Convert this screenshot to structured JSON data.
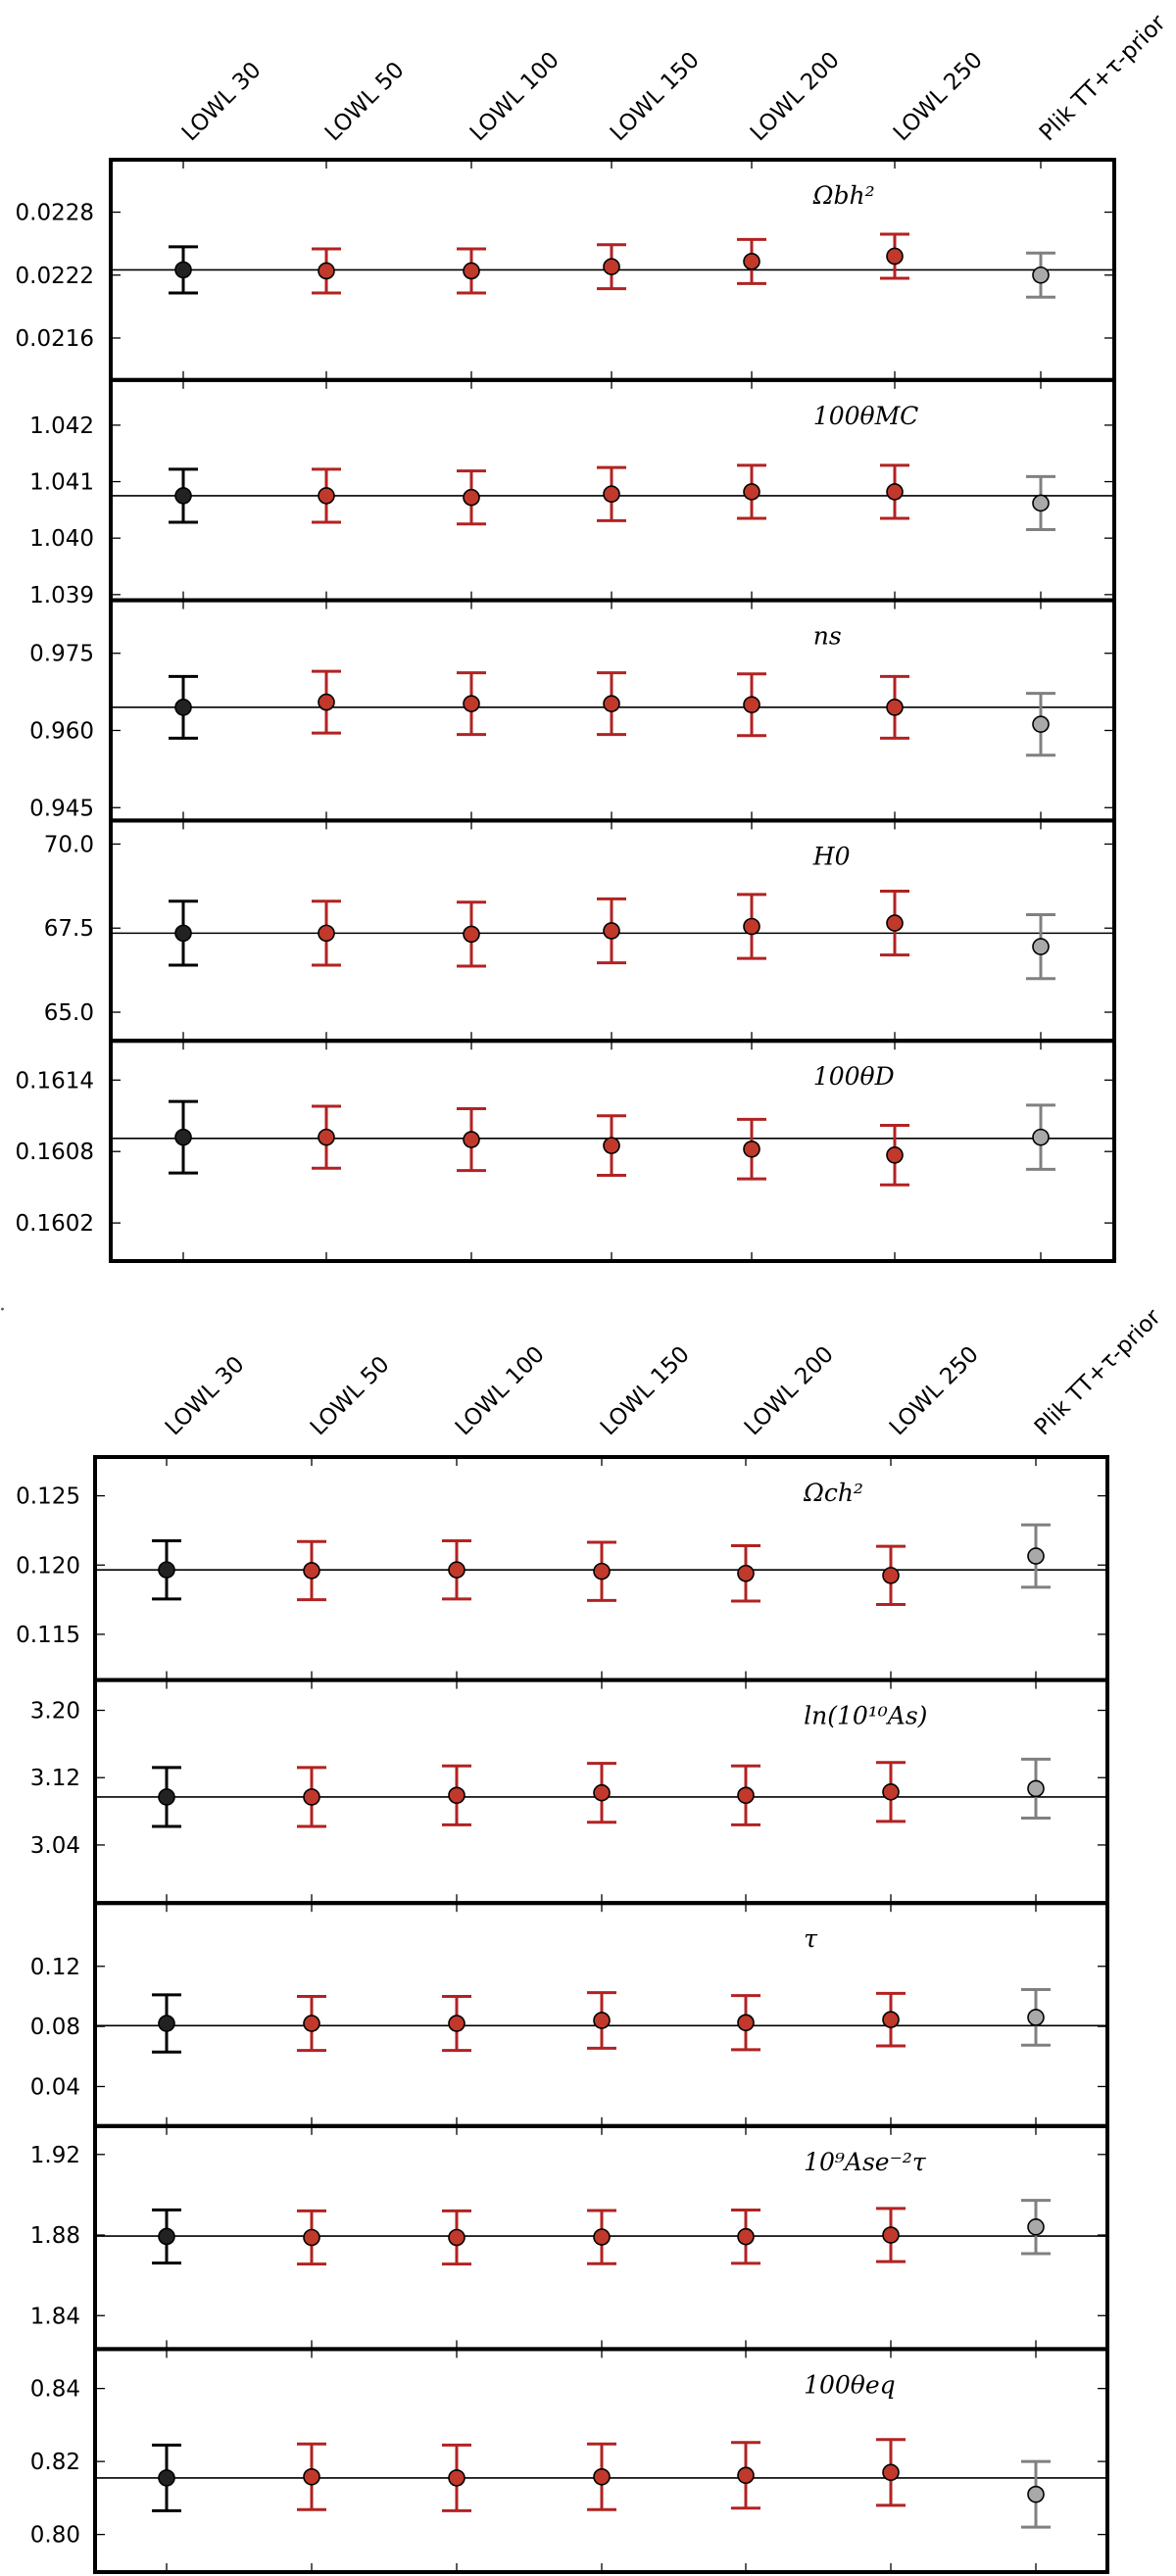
{
  "chart_data": [
    {
      "type": "scatter",
      "categories": [
        "LOWL 30",
        "LOWL 50",
        "LOWL 100",
        "LOWL 150",
        "LOWL 200",
        "LOWL 250",
        "Plik TT+τ-prior"
      ],
      "point_colors": [
        "#000000",
        "#b22222",
        "#b22222",
        "#b22222",
        "#b22222",
        "#b22222",
        "#808080"
      ],
      "fill_colors": [
        "#222222",
        "#c0392b",
        "#c0392b",
        "#c0392b",
        "#c0392b",
        "#c0392b",
        "#a9a9a9"
      ],
      "panels": [
        {
          "label": "Ωbh²",
          "ticks": [
            "0.0228",
            "0.0222",
            "0.0216"
          ],
          "tick_values": [
            0.0228,
            0.0222,
            0.0216
          ],
          "ylim": [
            0.0212,
            0.0233
          ],
          "reference": 0.02225,
          "values": [
            0.02225,
            0.02224,
            0.02224,
            0.02228,
            0.02233,
            0.02238,
            0.0222
          ],
          "errors": [
            0.00022,
            0.00021,
            0.00021,
            0.00021,
            0.00021,
            0.00021,
            0.00021
          ]
        },
        {
          "label": "100θMC",
          "ticks": [
            "1.042",
            "1.041",
            "1.040",
            "1.039"
          ],
          "tick_values": [
            1.042,
            1.041,
            1.04,
            1.039
          ],
          "ylim": [
            1.0389,
            1.0428
          ],
          "reference": 1.04075,
          "values": [
            1.04075,
            1.04075,
            1.04072,
            1.04078,
            1.04082,
            1.04082,
            1.04062
          ],
          "errors": [
            0.00047,
            0.00047,
            0.00047,
            0.00047,
            0.00047,
            0.00047,
            0.00047
          ]
        },
        {
          "label": "ns",
          "ticks": [
            "0.975",
            "0.960",
            "0.945"
          ],
          "tick_values": [
            0.975,
            0.96,
            0.945
          ],
          "ylim": [
            0.9425,
            0.9853
          ],
          "reference": 0.9645,
          "values": [
            0.9645,
            0.9655,
            0.9652,
            0.9652,
            0.965,
            0.9645,
            0.9612
          ],
          "errors": [
            0.006,
            0.006,
            0.006,
            0.006,
            0.006,
            0.006,
            0.006
          ]
        },
        {
          "label": "H0",
          "ticks": [
            "70.0",
            "67.5",
            "65.0"
          ],
          "tick_values": [
            70.0,
            67.5,
            65.0
          ],
          "ylim": [
            64.15,
            70.7
          ],
          "reference": 67.35,
          "values": [
            67.35,
            67.35,
            67.32,
            67.42,
            67.55,
            67.65,
            66.95
          ],
          "errors": [
            0.95,
            0.95,
            0.95,
            0.95,
            0.95,
            0.95,
            0.95
          ]
        },
        {
          "label": "100θD",
          "ticks": [
            "0.1614",
            "0.1608",
            "0.1602"
          ],
          "tick_values": [
            0.1614,
            0.1608,
            0.1602
          ],
          "ylim": [
            0.15988,
            0.16173
          ],
          "reference": 0.16091,
          "values": [
            0.16092,
            0.16092,
            0.1609,
            0.16085,
            0.16082,
            0.16077,
            0.16092
          ],
          "errors": [
            0.0003,
            0.00026,
            0.00026,
            0.00025,
            0.00025,
            0.00025,
            0.00027
          ]
        }
      ]
    },
    {
      "type": "scatter",
      "categories": [
        "LOWL 30",
        "LOWL 50",
        "LOWL 100",
        "LOWL 150",
        "LOWL 200",
        "LOWL 250",
        "Plik TT+τ-prior"
      ],
      "point_colors": [
        "#000000",
        "#b22222",
        "#b22222",
        "#b22222",
        "#b22222",
        "#b22222",
        "#808080"
      ],
      "fill_colors": [
        "#222222",
        "#c0392b",
        "#c0392b",
        "#c0392b",
        "#c0392b",
        "#c0392b",
        "#a9a9a9"
      ],
      "panels": [
        {
          "label": "Ωch²",
          "ticks": [
            "0.125",
            "0.120",
            "0.115"
          ],
          "tick_values": [
            0.125,
            0.12,
            0.115
          ],
          "ylim": [
            0.1117,
            0.1278
          ],
          "reference": 0.11965,
          "values": [
            0.11965,
            0.1196,
            0.11965,
            0.11955,
            0.1194,
            0.11925,
            0.12065
          ],
          "errors": [
            0.0021,
            0.0021,
            0.0021,
            0.0021,
            0.002,
            0.0021,
            0.00225
          ]
        },
        {
          "label": "ln(10¹⁰As)",
          "ticks": [
            "3.20",
            "3.12",
            "3.04"
          ],
          "tick_values": [
            3.2,
            3.12,
            3.04
          ],
          "ylim": [
            2.971,
            3.236
          ],
          "reference": 3.097,
          "values": [
            3.097,
            3.097,
            3.099,
            3.102,
            3.099,
            3.103,
            3.107
          ],
          "errors": [
            0.035,
            0.035,
            0.035,
            0.035,
            0.035,
            0.035,
            0.035
          ]
        },
        {
          "label": "τ",
          "ticks": [
            "0.12",
            "0.08",
            "0.04"
          ],
          "tick_values": [
            0.12,
            0.08,
            0.04
          ],
          "ylim": [
            0.0137,
            0.1621
          ],
          "reference": 0.0805,
          "values": [
            0.082,
            0.082,
            0.082,
            0.084,
            0.0825,
            0.0845,
            0.086
          ],
          "errors": [
            0.019,
            0.018,
            0.018,
            0.0185,
            0.018,
            0.0175,
            0.0185
          ]
        },
        {
          "label": "10⁹Ase⁻²τ",
          "ticks": [
            "1.92",
            "1.88",
            "1.84"
          ],
          "tick_values": [
            1.92,
            1.88,
            1.84
          ],
          "ylim": [
            1.8234,
            1.9341
          ],
          "reference": 1.8795,
          "values": [
            1.8793,
            1.8788,
            1.8788,
            1.879,
            1.8792,
            1.88,
            1.884
          ],
          "errors": [
            0.0132,
            0.0132,
            0.0132,
            0.0132,
            0.0132,
            0.0132,
            0.0132
          ]
        },
        {
          "label": "100θeq",
          "ticks": [
            "0.84",
            "0.82",
            "0.80"
          ],
          "tick_values": [
            0.84,
            0.82,
            0.8
          ],
          "ylim": [
            0.7897,
            0.8508
          ],
          "reference": 0.8155,
          "values": [
            0.8155,
            0.8158,
            0.8155,
            0.8158,
            0.8162,
            0.817,
            0.811
          ],
          "errors": [
            0.009,
            0.009,
            0.009,
            0.009,
            0.009,
            0.009,
            0.009
          ]
        }
      ]
    }
  ]
}
